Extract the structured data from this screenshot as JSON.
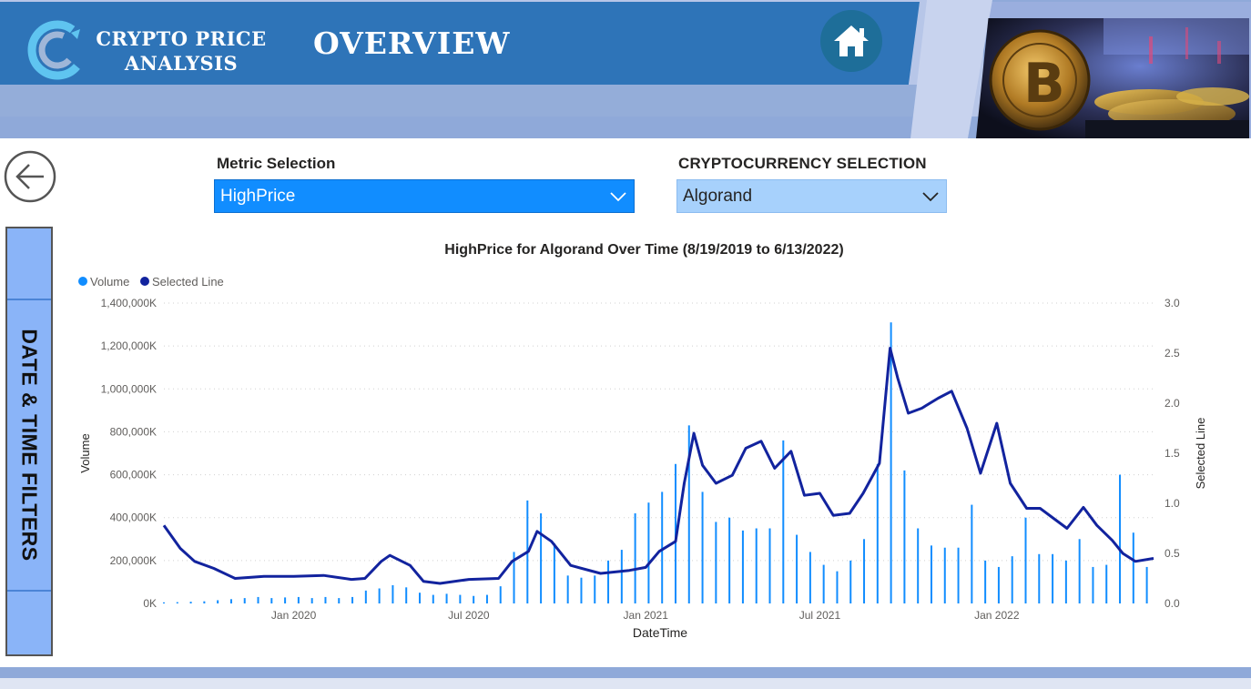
{
  "header": {
    "brand_line1": "CRYPTO PRICE",
    "brand_line2": "ANALYSIS",
    "page_title": "OVERVIEW",
    "home_icon": "home-icon",
    "back_icon": "arrow-left-icon"
  },
  "filters": {
    "panel_label": "DATE & TIME FILTERS"
  },
  "slicers": {
    "metric": {
      "title": "Metric Selection",
      "value": "HighPrice"
    },
    "crypto": {
      "title": "CRYPTOCURRENCY SELECTION",
      "value": "Algorand"
    }
  },
  "colors": {
    "header_blue": "#2e74b8",
    "volume": "#118dff",
    "selected_line": "#12239e",
    "slicer_selected": "#118dff",
    "slicer_light": "#a7d1fc"
  },
  "chart_data": {
    "type": "bar+line",
    "title": "HighPrice for Algorand Over Time (8/19/2019 to 6/13/2022)",
    "xlabel": "DateTime",
    "ylabel_left": "Volume",
    "ylabel_right": "Selected Line",
    "legend": {
      "placement": "top-left",
      "items": [
        {
          "name": "Volume",
          "color": "#118dff"
        },
        {
          "name": "Selected Line",
          "color": "#12239e"
        }
      ]
    },
    "x_ticks": [
      "Jan 2020",
      "Jul 2020",
      "Jan 2021",
      "Jul 2021",
      "Jan 2022"
    ],
    "x_tick_dates": [
      "2020-01-01",
      "2020-07-01",
      "2021-01-01",
      "2021-07-01",
      "2022-01-01"
    ],
    "x_range": [
      "2019-08-19",
      "2022-06-13"
    ],
    "y_left_ticks": [
      "0K",
      "200,000K",
      "400,000K",
      "600,000K",
      "800,000K",
      "1,000,000K",
      "1,200,000K",
      "1,400,000K"
    ],
    "y_left_range": [
      0,
      1400000
    ],
    "y_right_ticks": [
      "0.0",
      "0.5",
      "1.0",
      "1.5",
      "2.0",
      "2.5",
      "3.0"
    ],
    "y_right_range": [
      0,
      3.0
    ],
    "gridlines": "horizontal-dotted",
    "volume_series": {
      "name": "Volume",
      "unit": "K",
      "points": [
        [
          "2019-08-19",
          5000
        ],
        [
          "2019-09-02",
          6000
        ],
        [
          "2019-09-16",
          8000
        ],
        [
          "2019-09-30",
          10000
        ],
        [
          "2019-10-14",
          15000
        ],
        [
          "2019-10-28",
          20000
        ],
        [
          "2019-11-11",
          25000
        ],
        [
          "2019-11-25",
          30000
        ],
        [
          "2019-12-09",
          25000
        ],
        [
          "2019-12-23",
          28000
        ],
        [
          "2020-01-06",
          30000
        ],
        [
          "2020-01-20",
          25000
        ],
        [
          "2020-02-03",
          30000
        ],
        [
          "2020-02-17",
          25000
        ],
        [
          "2020-03-02",
          30000
        ],
        [
          "2020-03-16",
          60000
        ],
        [
          "2020-03-30",
          70000
        ],
        [
          "2020-04-13",
          85000
        ],
        [
          "2020-04-27",
          75000
        ],
        [
          "2020-05-11",
          50000
        ],
        [
          "2020-05-25",
          40000
        ],
        [
          "2020-06-08",
          45000
        ],
        [
          "2020-06-22",
          40000
        ],
        [
          "2020-07-06",
          35000
        ],
        [
          "2020-07-20",
          40000
        ],
        [
          "2020-08-03",
          80000
        ],
        [
          "2020-08-17",
          240000
        ],
        [
          "2020-08-31",
          480000
        ],
        [
          "2020-09-14",
          420000
        ],
        [
          "2020-09-28",
          280000
        ],
        [
          "2020-10-12",
          130000
        ],
        [
          "2020-10-26",
          120000
        ],
        [
          "2020-11-09",
          130000
        ],
        [
          "2020-11-23",
          200000
        ],
        [
          "2020-12-07",
          250000
        ],
        [
          "2020-12-21",
          420000
        ],
        [
          "2021-01-04",
          470000
        ],
        [
          "2021-01-18",
          520000
        ],
        [
          "2021-02-01",
          650000
        ],
        [
          "2021-02-15",
          830000
        ],
        [
          "2021-03-01",
          520000
        ],
        [
          "2021-03-15",
          380000
        ],
        [
          "2021-03-29",
          400000
        ],
        [
          "2021-04-12",
          340000
        ],
        [
          "2021-04-26",
          350000
        ],
        [
          "2021-05-10",
          350000
        ],
        [
          "2021-05-24",
          760000
        ],
        [
          "2021-06-07",
          320000
        ],
        [
          "2021-06-21",
          240000
        ],
        [
          "2021-07-05",
          180000
        ],
        [
          "2021-07-19",
          150000
        ],
        [
          "2021-08-02",
          200000
        ],
        [
          "2021-08-16",
          300000
        ],
        [
          "2021-08-30",
          650000
        ],
        [
          "2021-09-13",
          1310000
        ],
        [
          "2021-09-27",
          620000
        ],
        [
          "2021-10-11",
          350000
        ],
        [
          "2021-10-25",
          270000
        ],
        [
          "2021-11-08",
          260000
        ],
        [
          "2021-11-22",
          260000
        ],
        [
          "2021-12-06",
          460000
        ],
        [
          "2021-12-20",
          200000
        ],
        [
          "2022-01-03",
          170000
        ],
        [
          "2022-01-17",
          220000
        ],
        [
          "2022-01-31",
          400000
        ],
        [
          "2022-02-14",
          230000
        ],
        [
          "2022-02-28",
          230000
        ],
        [
          "2022-03-14",
          200000
        ],
        [
          "2022-03-28",
          300000
        ],
        [
          "2022-04-11",
          170000
        ],
        [
          "2022-04-25",
          180000
        ],
        [
          "2022-05-09",
          600000
        ],
        [
          "2022-05-23",
          330000
        ],
        [
          "2022-06-06",
          170000
        ]
      ]
    },
    "selected_line_series": {
      "name": "Selected Line",
      "points": [
        [
          "2019-08-19",
          0.78
        ],
        [
          "2019-09-05",
          0.55
        ],
        [
          "2019-09-20",
          0.42
        ],
        [
          "2019-10-10",
          0.35
        ],
        [
          "2019-11-01",
          0.25
        ],
        [
          "2019-12-01",
          0.27
        ],
        [
          "2020-01-01",
          0.27
        ],
        [
          "2020-02-01",
          0.28
        ],
        [
          "2020-03-01",
          0.24
        ],
        [
          "2020-03-15",
          0.25
        ],
        [
          "2020-04-01",
          0.42
        ],
        [
          "2020-04-10",
          0.48
        ],
        [
          "2020-05-01",
          0.38
        ],
        [
          "2020-05-15",
          0.22
        ],
        [
          "2020-06-01",
          0.2
        ],
        [
          "2020-07-01",
          0.24
        ],
        [
          "2020-08-01",
          0.25
        ],
        [
          "2020-08-15",
          0.42
        ],
        [
          "2020-09-01",
          0.52
        ],
        [
          "2020-09-10",
          0.72
        ],
        [
          "2020-09-25",
          0.62
        ],
        [
          "2020-10-15",
          0.38
        ],
        [
          "2020-11-15",
          0.3
        ],
        [
          "2020-12-15",
          0.33
        ],
        [
          "2021-01-01",
          0.36
        ],
        [
          "2021-01-15",
          0.52
        ],
        [
          "2021-02-01",
          0.62
        ],
        [
          "2021-02-10",
          1.2
        ],
        [
          "2021-02-20",
          1.7
        ],
        [
          "2021-03-01",
          1.38
        ],
        [
          "2021-03-15",
          1.2
        ],
        [
          "2021-04-01",
          1.28
        ],
        [
          "2021-04-15",
          1.55
        ],
        [
          "2021-05-01",
          1.62
        ],
        [
          "2021-05-15",
          1.35
        ],
        [
          "2021-06-01",
          1.52
        ],
        [
          "2021-06-15",
          1.08
        ],
        [
          "2021-07-01",
          1.1
        ],
        [
          "2021-07-15",
          0.88
        ],
        [
          "2021-08-01",
          0.9
        ],
        [
          "2021-08-15",
          1.1
        ],
        [
          "2021-09-01",
          1.4
        ],
        [
          "2021-09-12",
          2.55
        ],
        [
          "2021-09-20",
          2.25
        ],
        [
          "2021-10-01",
          1.9
        ],
        [
          "2021-10-15",
          1.95
        ],
        [
          "2021-11-01",
          2.05
        ],
        [
          "2021-11-15",
          2.12
        ],
        [
          "2021-12-01",
          1.75
        ],
        [
          "2021-12-15",
          1.3
        ],
        [
          "2022-01-01",
          1.8
        ],
        [
          "2022-01-15",
          1.2
        ],
        [
          "2022-02-01",
          0.95
        ],
        [
          "2022-02-15",
          0.95
        ],
        [
          "2022-03-01",
          0.85
        ],
        [
          "2022-03-15",
          0.75
        ],
        [
          "2022-04-01",
          0.96
        ],
        [
          "2022-04-15",
          0.78
        ],
        [
          "2022-05-01",
          0.63
        ],
        [
          "2022-05-12",
          0.5
        ],
        [
          "2022-05-25",
          0.42
        ],
        [
          "2022-06-13",
          0.45
        ]
      ]
    }
  }
}
